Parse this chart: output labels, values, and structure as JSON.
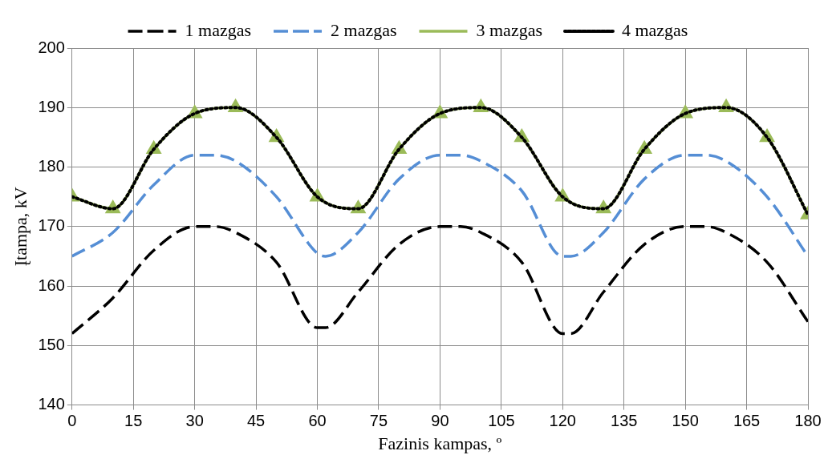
{
  "chart_data": {
    "type": "line",
    "xlabel": "Fazinis kampas, º",
    "ylabel": "Įtampa, kV",
    "xlim": [
      0,
      180
    ],
    "xticks": [
      0,
      15,
      30,
      45,
      60,
      75,
      90,
      105,
      120,
      135,
      150,
      165,
      180
    ],
    "ylim": [
      140,
      200
    ],
    "yticks": [
      140,
      150,
      160,
      170,
      180,
      190,
      200
    ],
    "grid": true,
    "legend": "top",
    "series": [
      {
        "name": "1 mazgas",
        "color": "#000000",
        "line_style": "dashed",
        "marker": "none",
        "x": [
          0,
          10,
          20,
          30,
          35,
          40,
          50,
          60,
          62,
          70,
          80,
          90,
          95,
          100,
          110,
          120,
          122,
          130,
          140,
          150,
          155,
          160,
          170,
          180
        ],
        "values": [
          152,
          158,
          166,
          170,
          170,
          169,
          164,
          153,
          153,
          159,
          167,
          170,
          170,
          169,
          164,
          152,
          152,
          159,
          167,
          170,
          170,
          169,
          164,
          154
        ]
      },
      {
        "name": "2 mazgas",
        "color": "#558ed5",
        "line_style": "dashed",
        "marker": "none",
        "x": [
          0,
          10,
          20,
          30,
          35,
          40,
          50,
          60,
          62,
          70,
          80,
          90,
          95,
          100,
          110,
          120,
          122,
          130,
          140,
          150,
          155,
          160,
          170,
          180
        ],
        "values": [
          165,
          169,
          177,
          182,
          182,
          181,
          175,
          165.5,
          165,
          169,
          178,
          182,
          182,
          181,
          176,
          165,
          165,
          169,
          178,
          182,
          182,
          181,
          175,
          165
        ]
      },
      {
        "name": "3 mazgas",
        "color": "#9bbb59",
        "line_style": "solid",
        "marker": "triangle",
        "x": [
          0,
          10,
          20,
          30,
          40,
          50,
          60,
          70,
          80,
          90,
          100,
          110,
          120,
          130,
          140,
          150,
          160,
          170,
          180
        ],
        "values": [
          175,
          173,
          183,
          189,
          190,
          185,
          175,
          173,
          183,
          189,
          190,
          185,
          175,
          173,
          183,
          189,
          190,
          185,
          172
        ]
      },
      {
        "name": "4 mazgas",
        "color": "#000000",
        "line_style": "dotted",
        "marker": "none",
        "x": [
          0,
          10,
          20,
          30,
          40,
          50,
          60,
          70,
          80,
          90,
          100,
          110,
          120,
          130,
          140,
          150,
          160,
          170,
          180
        ],
        "values": [
          175,
          173,
          183,
          189,
          190,
          185,
          175,
          173,
          183,
          189,
          190,
          185,
          175,
          173,
          183,
          189,
          190,
          185,
          172
        ]
      }
    ]
  }
}
